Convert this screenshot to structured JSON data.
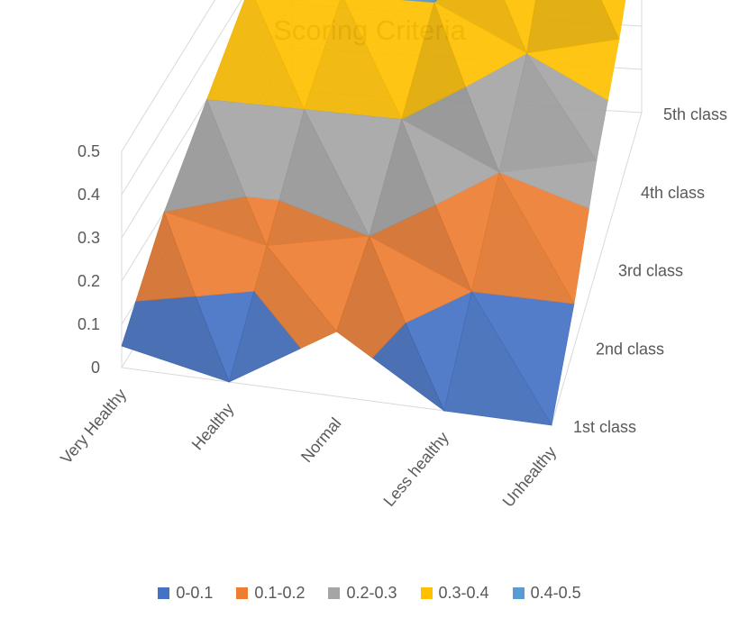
{
  "chart_data": {
    "type": "surface",
    "title": "Scoring Criteria",
    "categories": [
      "Very Healthy",
      "Healthy",
      "Normal",
      "Less healthy",
      "Unhealthy"
    ],
    "series": [
      {
        "name": "1st class",
        "values": [
          0.05,
          0.0,
          0.15,
          0.0,
          0.0
        ]
      },
      {
        "name": "2nd class",
        "values": [
          0.2,
          0.15,
          0.2,
          0.1,
          0.1
        ]
      },
      {
        "name": "3rd class",
        "values": [
          0.3,
          0.3,
          0.3,
          0.2,
          0.25
        ]
      },
      {
        "name": "4th class",
        "values": [
          0.4,
          0.4,
          0.4,
          0.3,
          0.35
        ]
      },
      {
        "name": "5th class",
        "values": [
          0.5,
          0.5,
          0.45,
          0.5,
          0.5
        ]
      }
    ],
    "z_ticks": [
      "0",
      "0.1",
      "0.2",
      "0.3",
      "0.4",
      "0.5"
    ],
    "zlim": [
      0,
      0.5
    ],
    "bands": [
      {
        "label": "0-0.1",
        "color": "#4472C4"
      },
      {
        "label": "0.1-0.2",
        "color": "#ED7D31"
      },
      {
        "label": "0.2-0.3",
        "color": "#A5A5A5"
      },
      {
        "label": "0.3-0.4",
        "color": "#FFC000"
      },
      {
        "label": "0.4-0.5",
        "color": "#5B9BD5"
      }
    ],
    "legend_position": "bottom",
    "grid": true
  }
}
